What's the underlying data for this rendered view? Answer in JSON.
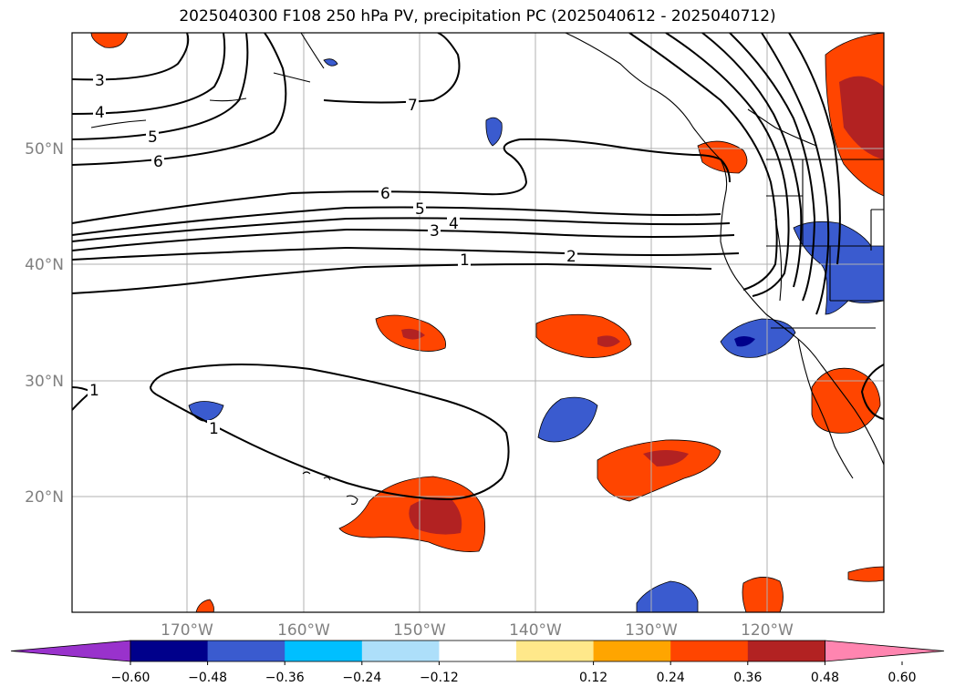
{
  "title": "2025040300 F108 250 hPa PV, precipitation PC (2025040612 - 2025040712)",
  "map": {
    "lat_labels": [
      "50°N",
      "40°N",
      "30°N",
      "20°N"
    ],
    "lon_labels": [
      "170°W",
      "160°W",
      "150°W",
      "140°W",
      "130°W",
      "120°W"
    ],
    "contour_labels": [
      "3",
      "4",
      "5",
      "6",
      "7",
      "6",
      "5",
      "4",
      "3",
      "1",
      "2",
      "1",
      "1"
    ]
  },
  "colorbar": {
    "ticks": [
      "−0.60",
      "−0.48",
      "−0.36",
      "−0.24",
      "−0.12",
      "0.12",
      "0.24",
      "0.36",
      "0.48",
      "0.60"
    ],
    "colors": [
      "#9932CC",
      "#00008B",
      "#3A5BCF",
      "#00BFFF",
      "#ADDFFA",
      "#FFFFFF",
      "#FFE88A",
      "#FFA500",
      "#FF4500",
      "#B22222",
      "#FF85B0"
    ]
  }
}
